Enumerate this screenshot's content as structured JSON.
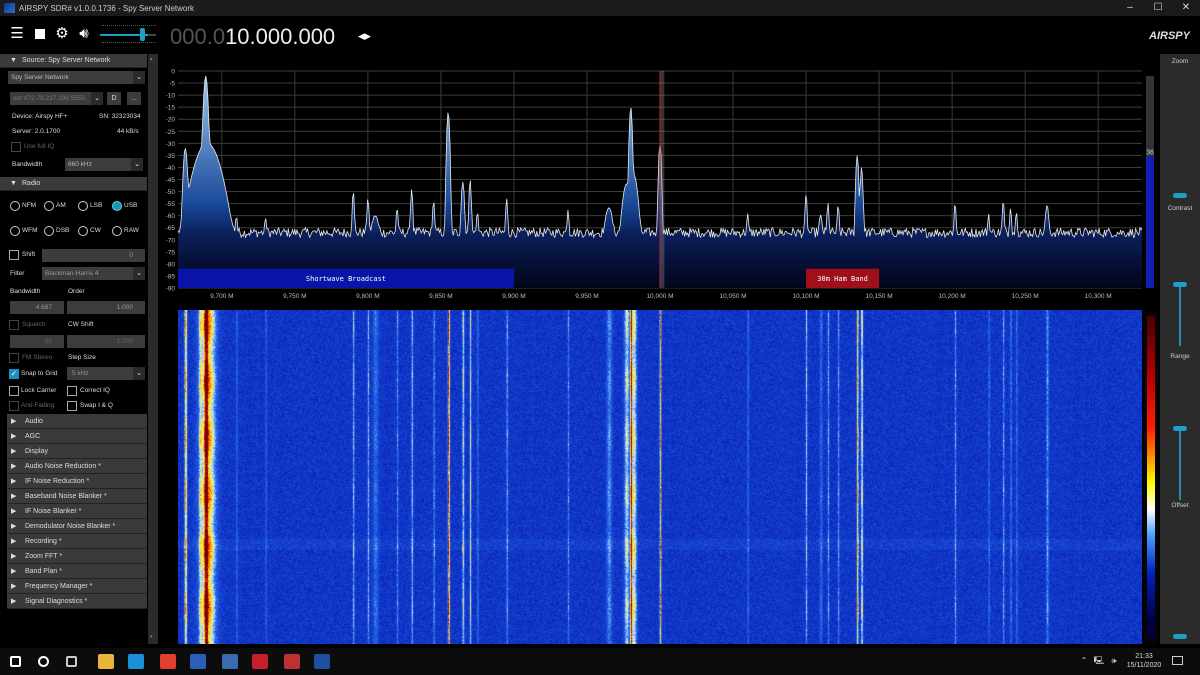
{
  "window": {
    "title": "AIRSPY SDR# v1.0.0.1736 - Spy Server Network",
    "minimize": "–",
    "maximize": "☐",
    "close": "✕"
  },
  "toolbar": {
    "menu_icon": "hamburger-icon",
    "stop_icon": "stop-icon",
    "settings_icon": "gear-icon",
    "volume_icon": "speaker-icon",
    "volume_level": 0.9,
    "frequency_dim": "000.0",
    "frequency_bright": "10.000.000",
    "tune_arrows": "◂▸",
    "logo": "AIRSPY"
  },
  "source": {
    "header": "Source: Spy Server Network",
    "source_select": "Spy Server Network",
    "server_url": "sdr://72.79.237.196:5555",
    "connect_button": "D",
    "more_button": "...",
    "device": "Device: Airspy HF+",
    "serial": "SN: 32323034",
    "server": "Server: 2.0.1700",
    "rate": "44 kB/s",
    "use_full_iq": "Use full IQ",
    "bandwidth_label": "Bandwidth",
    "bandwidth_value": "660 kHz"
  },
  "radio": {
    "header": "Radio",
    "modes": [
      {
        "label": "NFM",
        "selected": false
      },
      {
        "label": "AM",
        "selected": false
      },
      {
        "label": "LSB",
        "selected": false
      },
      {
        "label": "USB",
        "selected": true
      },
      {
        "label": "WFM",
        "selected": false
      },
      {
        "label": "DSB",
        "selected": false
      },
      {
        "label": "CW",
        "selected": false
      },
      {
        "label": "RAW",
        "selected": false
      }
    ],
    "shift_label": "Shift",
    "shift_value": "0",
    "filter_label": "Filter",
    "filter_value": "Blackman-Harris 4",
    "bandwidth_label": "Bandwidth",
    "bandwidth_value": "4.687",
    "order_label": "Order",
    "order_value": "1.000",
    "squelch_label": "Squelch",
    "squelch_value": "50",
    "cw_shift_label": "CW Shift",
    "cw_shift_value": "1.000",
    "fm_stereo_label": "FM Stereo",
    "step_size_label": "Step Size",
    "step_size_value": "5 kHz",
    "snap_to_grid_label": "Snap to Grid",
    "snap_to_grid": true,
    "lock_carrier_label": "Lock Carrier",
    "correct_iq_label": "Correct IQ",
    "anti_fading_label": "Anti-Fading",
    "swap_iq_label": "Swap I & Q"
  },
  "panels": [
    "Audio",
    "AGC",
    "Display",
    "Audio Noise Reduction *",
    "IF Noise Reduction *",
    "Baseband Noise Blanker *",
    "IF Noise Blanker *",
    "Demodulator Noise Blanker *",
    "Recording *",
    "Zoom FFT *",
    "Band Plan *",
    "Frequency Manager *",
    "Signal Diagnostics *"
  ],
  "right_panel": {
    "zoom": "Zoom",
    "contrast": "Contrast",
    "range": "Range",
    "offset": "Offset",
    "zoom_level": 0.35,
    "contrast_level": 0.1,
    "range_level": 0.5,
    "offset_level": 0.02
  },
  "chart_data": {
    "type": "area",
    "xlabel": "",
    "ylabel": "",
    "x_range_khz": [
      9670,
      10330
    ],
    "ylim": [
      -90,
      0
    ],
    "y_ticks": [
      "0",
      "-5",
      "-10",
      "-15",
      "-20",
      "-25",
      "-30",
      "-35",
      "-40",
      "-45",
      "-50",
      "-55",
      "-60",
      "-65",
      "-70",
      "-75",
      "-80",
      "-85",
      "-90"
    ],
    "x_ticks": [
      {
        "khz": 9700,
        "label": "9,700 M"
      },
      {
        "khz": 9750,
        "label": "9,750 M"
      },
      {
        "khz": 9800,
        "label": "9,800 M"
      },
      {
        "khz": 9850,
        "label": "9,850 M"
      },
      {
        "khz": 9900,
        "label": "9,900 M"
      },
      {
        "khz": 9950,
        "label": "9,950 M"
      },
      {
        "khz": 10000,
        "label": "10,000 M"
      },
      {
        "khz": 10050,
        "label": "10,050 M"
      },
      {
        "khz": 10100,
        "label": "10,100 M"
      },
      {
        "khz": 10150,
        "label": "10,150 M"
      },
      {
        "khz": 10200,
        "label": "10,200 M"
      },
      {
        "khz": 10250,
        "label": "10,250 M"
      },
      {
        "khz": 10300,
        "label": "10,300 M"
      }
    ],
    "grid": true,
    "noise_floor_db": -67,
    "tuned_khz": 10000,
    "filter_khz": [
      10000,
      10003
    ],
    "signal_level": "36",
    "signal_level_fraction": 0.62,
    "peaks": [
      {
        "khz": 9675,
        "db": -32,
        "bw": 1
      },
      {
        "khz": 9685,
        "db": -58,
        "bw": 1
      },
      {
        "khz": 9689,
        "db": -2,
        "bw": 1
      },
      {
        "khz": 9690,
        "db": -30,
        "bw": 6
      },
      {
        "khz": 9710,
        "db": -61,
        "bw": 0.6
      },
      {
        "khz": 9730,
        "db": -62,
        "bw": 0.6
      },
      {
        "khz": 9790,
        "db": -50,
        "bw": 0.6
      },
      {
        "khz": 9800,
        "db": -53,
        "bw": 0.6
      },
      {
        "khz": 9805,
        "db": -61,
        "bw": 2
      },
      {
        "khz": 9820,
        "db": -57,
        "bw": 0.6
      },
      {
        "khz": 9830,
        "db": -49,
        "bw": 0.6
      },
      {
        "khz": 9845,
        "db": -54,
        "bw": 0.6
      },
      {
        "khz": 9855,
        "db": -17,
        "bw": 0.7
      },
      {
        "khz": 9865,
        "db": -46,
        "bw": 0.8
      },
      {
        "khz": 9870,
        "db": -45,
        "bw": 0.6
      },
      {
        "khz": 9875,
        "db": -59,
        "bw": 0.6
      },
      {
        "khz": 9895,
        "db": -53,
        "bw": 0.6
      },
      {
        "khz": 9937,
        "db": -58,
        "bw": 0.6
      },
      {
        "khz": 9965,
        "db": -57,
        "bw": 2
      },
      {
        "khz": 9977,
        "db": -47,
        "bw": 2
      },
      {
        "khz": 9980,
        "db": -15,
        "bw": 0.7
      },
      {
        "khz": 9982,
        "db": -43,
        "bw": 2
      },
      {
        "khz": 10000,
        "db": -30,
        "bw": 0.7
      },
      {
        "khz": 10060,
        "db": -60,
        "bw": 0.6
      },
      {
        "khz": 10100,
        "db": -51,
        "bw": 0.6
      },
      {
        "khz": 10110,
        "db": -61,
        "bw": 1
      },
      {
        "khz": 10115,
        "db": -55,
        "bw": 0.6
      },
      {
        "khz": 10122,
        "db": -56,
        "bw": 0.6
      },
      {
        "khz": 10135,
        "db": -35,
        "bw": 0.7
      },
      {
        "khz": 10138,
        "db": -40,
        "bw": 0.7
      },
      {
        "khz": 10202,
        "db": -55,
        "bw": 0.6
      },
      {
        "khz": 10225,
        "db": -60,
        "bw": 0.6
      },
      {
        "khz": 10235,
        "db": -54,
        "bw": 0.6
      },
      {
        "khz": 10240,
        "db": -57,
        "bw": 0.6
      },
      {
        "khz": 10244,
        "db": -59,
        "bw": 0.6
      },
      {
        "khz": 10265,
        "db": -56,
        "bw": 1
      }
    ],
    "band_plan": [
      {
        "label": "Shortwave Broadcast",
        "start_khz": 9400,
        "end_khz": 9900,
        "color": "#0a14a8"
      },
      {
        "label": "30m Ham Band",
        "start_khz": 10100,
        "end_khz": 10150,
        "color": "#a0101a"
      }
    ]
  },
  "taskbar": {
    "icons": [
      "windows-start-icon",
      "search-icon",
      "task-view-icon",
      "file-explorer-icon",
      "edge-icon",
      "chrome-icon",
      "word-icon",
      "paint-icon",
      "acrobat-icon",
      "sdr-console-icon",
      "sdrsharp-icon"
    ],
    "time": "21:33",
    "date": "15/11/2020"
  }
}
